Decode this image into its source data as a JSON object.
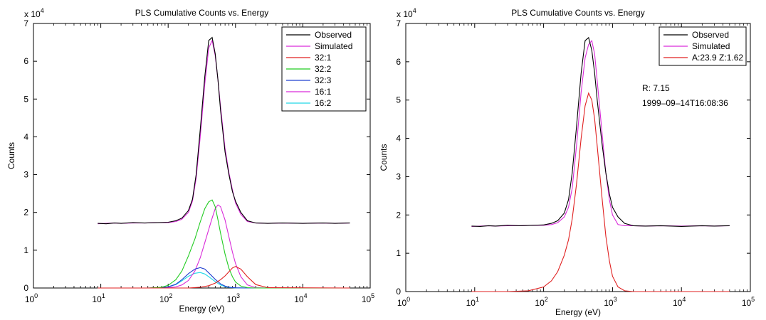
{
  "chart_data": [
    {
      "type": "line",
      "title": "PLS Cumulative Counts vs. Energy",
      "xlabel": "Energy (eV)",
      "ylabel": "Counts",
      "y_exponent_label": "x 10",
      "y_exponent": "4",
      "xscale": "log",
      "xlim": [
        1,
        100000
      ],
      "ylim": [
        0,
        70000
      ],
      "x_tick_base": "10",
      "x_ticks": [
        {
          "value": 1,
          "exp": "0"
        },
        {
          "value": 10,
          "exp": "1"
        },
        {
          "value": 100,
          "exp": "2"
        },
        {
          "value": 1000,
          "exp": "3"
        },
        {
          "value": 10000,
          "exp": "4"
        },
        {
          "value": 100000,
          "exp": "5"
        }
      ],
      "y_ticks": [
        {
          "value": 0,
          "label": "0"
        },
        {
          "value": 10000,
          "label": "1"
        },
        {
          "value": 20000,
          "label": "2"
        },
        {
          "value": 30000,
          "label": "3"
        },
        {
          "value": 40000,
          "label": "4"
        },
        {
          "value": 50000,
          "label": "5"
        },
        {
          "value": 60000,
          "label": "6"
        },
        {
          "value": 70000,
          "label": "7"
        }
      ],
      "grid": false,
      "legend_position": "top-right",
      "series": [
        {
          "name": "Observed",
          "color": "#000000",
          "x": [
            9,
            12,
            16,
            20,
            30,
            45,
            70,
            100,
            130,
            160,
            200,
            230,
            260,
            300,
            350,
            400,
            450,
            500,
            550,
            600,
            700,
            800,
            900,
            1000,
            1200,
            1500,
            2000,
            3000,
            5000,
            10000,
            20000,
            30000,
            50000
          ],
          "y": [
            17100,
            17000,
            17200,
            17100,
            17300,
            17200,
            17300,
            17400,
            17800,
            18500,
            20500,
            23500,
            30000,
            42000,
            56000,
            65500,
            66300,
            62000,
            55000,
            47000,
            36000,
            30000,
            25500,
            23000,
            20000,
            17800,
            17200,
            17100,
            17200,
            17100,
            17200,
            17100,
            17200
          ]
        },
        {
          "name": "Simulated",
          "color": "#d92ad9",
          "x": [
            9,
            12,
            16,
            20,
            30,
            45,
            70,
            100,
            130,
            160,
            200,
            230,
            260,
            300,
            350,
            400,
            450,
            500,
            550,
            600,
            700,
            800,
            900,
            1000,
            1200,
            1500,
            2000,
            3000,
            5000,
            10000,
            20000,
            30000,
            50000
          ],
          "y": [
            17000,
            17100,
            17200,
            17100,
            17200,
            17200,
            17300,
            17300,
            17600,
            18200,
            20000,
            23000,
            29000,
            40000,
            54000,
            63500,
            65500,
            61500,
            55000,
            48000,
            37000,
            30500,
            26000,
            22500,
            19500,
            17600,
            17200,
            17100,
            17200,
            17100,
            17200,
            17100,
            17200
          ]
        },
        {
          "name": "32:1",
          "color": "#e02020",
          "x": [
            9,
            50,
            100,
            200,
            300,
            400,
            500,
            600,
            700,
            800,
            900,
            1000,
            1200,
            1500,
            2000,
            3000,
            50000
          ],
          "y": [
            0,
            0,
            0,
            0,
            200,
            600,
            1300,
            2200,
            3200,
            4300,
            5300,
            5700,
            5000,
            3000,
            900,
            100,
            0
          ]
        },
        {
          "name": "32:2",
          "color": "#22cc22",
          "x": [
            9,
            50,
            80,
            100,
            130,
            160,
            200,
            250,
            300,
            350,
            400,
            450,
            500,
            550,
            600,
            700,
            800,
            900,
            1000,
            1200,
            1500,
            2000,
            50000
          ],
          "y": [
            0,
            0,
            200,
            700,
            2200,
            4500,
            8500,
            13000,
            17500,
            21000,
            22800,
            23300,
            21500,
            18000,
            14500,
            9000,
            5200,
            3000,
            1600,
            500,
            100,
            0,
            0
          ]
        },
        {
          "name": "32:3",
          "color": "#2040d0",
          "x": [
            9,
            50,
            80,
            100,
            130,
            160,
            200,
            250,
            300,
            350,
            400,
            500,
            600,
            700,
            800,
            1000,
            1500,
            50000
          ],
          "y": [
            0,
            0,
            100,
            300,
            1000,
            2200,
            3800,
            5000,
            5400,
            5000,
            4000,
            2300,
            1100,
            500,
            200,
            50,
            0,
            0
          ]
        },
        {
          "name": "16:1",
          "color": "#d92ad9",
          "x": [
            9,
            50,
            100,
            130,
            160,
            200,
            250,
            300,
            350,
            400,
            450,
            500,
            550,
            600,
            700,
            800,
            900,
            1000,
            1200,
            1500,
            2000,
            3000,
            50000
          ],
          "y": [
            0,
            0,
            100,
            300,
            800,
            2000,
            4500,
            8000,
            12000,
            15500,
            18500,
            21000,
            22000,
            21500,
            18000,
            13500,
            9500,
            6500,
            3000,
            800,
            100,
            0,
            0
          ]
        },
        {
          "name": "16:2",
          "color": "#20d8e8",
          "x": [
            9,
            50,
            80,
            100,
            130,
            160,
            200,
            250,
            300,
            350,
            400,
            500,
            600,
            700,
            800,
            1000,
            1500,
            50000
          ],
          "y": [
            0,
            0,
            100,
            300,
            900,
            1900,
            3100,
            3900,
            4100,
            3700,
            3000,
            1700,
            800,
            350,
            150,
            30,
            0,
            0
          ]
        }
      ]
    },
    {
      "type": "line",
      "title": "PLS Cumulative Counts vs. Energy",
      "xlabel": "Energy (eV)",
      "ylabel": "Counts",
      "y_exponent_label": "x 10",
      "y_exponent": "4",
      "xscale": "log",
      "xlim": [
        1,
        100000
      ],
      "ylim": [
        0,
        70000
      ],
      "x_tick_base": "10",
      "x_ticks": [
        {
          "value": 1,
          "exp": "0"
        },
        {
          "value": 10,
          "exp": "1"
        },
        {
          "value": 100,
          "exp": "2"
        },
        {
          "value": 1000,
          "exp": "3"
        },
        {
          "value": 10000,
          "exp": "4"
        },
        {
          "value": 100000,
          "exp": "5"
        }
      ],
      "y_ticks": [
        {
          "value": 0,
          "label": "0"
        },
        {
          "value": 10000,
          "label": "1"
        },
        {
          "value": 20000,
          "label": "2"
        },
        {
          "value": 30000,
          "label": "3"
        },
        {
          "value": 40000,
          "label": "4"
        },
        {
          "value": 50000,
          "label": "5"
        },
        {
          "value": 60000,
          "label": "6"
        },
        {
          "value": 70000,
          "label": "7"
        }
      ],
      "grid": false,
      "legend_position": "top-right",
      "annotations": [
        "R:  7.15",
        "1999–09–14T16:08:36"
      ],
      "series": [
        {
          "name": "Observed",
          "color": "#000000",
          "x": [
            9,
            12,
            16,
            20,
            30,
            45,
            70,
            100,
            130,
            160,
            200,
            230,
            260,
            300,
            350,
            400,
            450,
            500,
            550,
            600,
            700,
            800,
            900,
            1000,
            1200,
            1500,
            2000,
            3000,
            5000,
            10000,
            20000,
            30000,
            50000
          ],
          "y": [
            17100,
            17000,
            17200,
            17100,
            17300,
            17200,
            17300,
            17400,
            17800,
            18500,
            20500,
            24000,
            31000,
            43000,
            57000,
            65500,
            66300,
            63000,
            57000,
            50000,
            39000,
            31000,
            25500,
            22000,
            19500,
            17800,
            17200,
            17100,
            17200,
            17000,
            17200,
            17100,
            17200
          ]
        },
        {
          "name": "Simulated",
          "color": "#d92ad9",
          "x": [
            9,
            12,
            16,
            20,
            30,
            45,
            70,
            100,
            130,
            160,
            200,
            230,
            260,
            300,
            350,
            400,
            450,
            500,
            550,
            600,
            700,
            800,
            900,
            1000,
            1200,
            1500,
            2000,
            3000,
            5000,
            10000,
            20000,
            30000,
            50000
          ],
          "y": [
            17000,
            17100,
            17200,
            17100,
            17200,
            17200,
            17300,
            17300,
            17500,
            18000,
            19500,
            22000,
            27000,
            38000,
            52000,
            61000,
            64500,
            65500,
            62000,
            55000,
            42000,
            31000,
            24000,
            20000,
            17500,
            17200,
            17200,
            17100,
            17200,
            17100,
            17200,
            17100,
            17200
          ]
        },
        {
          "name": "A:23.9   Z:1.62",
          "color": "#e02020",
          "x": [
            9,
            30,
            60,
            100,
            130,
            160,
            200,
            230,
            260,
            300,
            350,
            400,
            450,
            500,
            550,
            600,
            700,
            800,
            900,
            1000,
            1200,
            1500,
            2000,
            3000,
            50000
          ],
          "y": [
            0,
            0,
            200,
            1200,
            2800,
            5200,
            9500,
            13500,
            19000,
            28000,
            40000,
            48500,
            51800,
            50000,
            45000,
            38000,
            25000,
            14500,
            8000,
            4000,
            1200,
            200,
            0,
            0,
            0
          ]
        }
      ]
    }
  ]
}
